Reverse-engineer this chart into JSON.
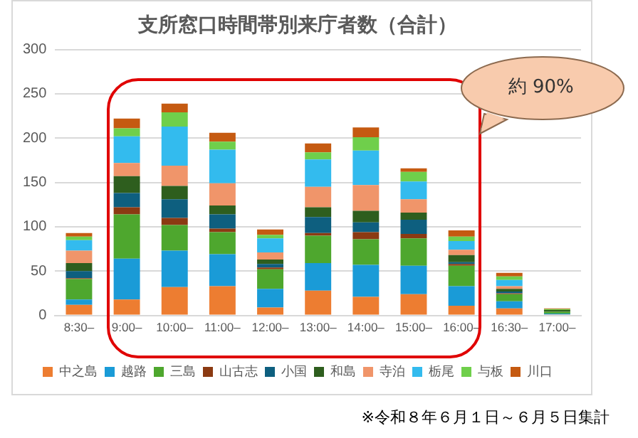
{
  "chart_data": {
    "type": "bar",
    "stacked": true,
    "title": "支所窓口時間帯別来庁者数（合計）",
    "categories": [
      "8:30–",
      "9:00–",
      "10:00–",
      "11:00–",
      "12:00–",
      "13:00–",
      "14:00–",
      "15:00–",
      "16:00–",
      "16:30–",
      "17:00–"
    ],
    "series": [
      {
        "name": "中之島",
        "color": "#ed7d31",
        "values": [
          12,
          18,
          32,
          33,
          9,
          28,
          21,
          24,
          11,
          8,
          1
        ]
      },
      {
        "name": "越路",
        "color": "#1a9bd7",
        "values": [
          6,
          46,
          41,
          36,
          21,
          31,
          36,
          32,
          22,
          8,
          1
        ]
      },
      {
        "name": "三島",
        "color": "#4ea72e",
        "values": [
          23,
          50,
          29,
          25,
          22,
          31,
          29,
          31,
          23,
          8,
          2
        ]
      },
      {
        "name": "山古志",
        "color": "#8b3a12",
        "values": [
          1,
          8,
          8,
          4,
          2,
          3,
          8,
          5,
          2,
          1,
          0
        ]
      },
      {
        "name": "小国",
        "color": "#0e5f7f",
        "values": [
          8,
          16,
          21,
          16,
          4,
          18,
          11,
          16,
          2,
          2,
          0
        ]
      },
      {
        "name": "和島",
        "color": "#2e5e1e",
        "values": [
          9,
          19,
          15,
          10,
          5,
          11,
          13,
          8,
          8,
          3,
          2
        ]
      },
      {
        "name": "寺泊",
        "color": "#f0956a",
        "values": [
          14,
          15,
          23,
          25,
          8,
          23,
          29,
          15,
          6,
          3,
          0
        ]
      },
      {
        "name": "栃尾",
        "color": "#33bbee",
        "values": [
          12,
          30,
          44,
          38,
          16,
          31,
          39,
          20,
          10,
          7,
          0
        ]
      },
      {
        "name": "与板",
        "color": "#6fcf4b",
        "values": [
          4,
          9,
          16,
          9,
          4,
          8,
          15,
          11,
          5,
          4,
          1
        ]
      },
      {
        "name": "川口",
        "color": "#c55a11",
        "values": [
          4,
          11,
          10,
          10,
          6,
          10,
          11,
          4,
          7,
          4,
          1
        ]
      }
    ],
    "ylim": [
      0,
      300
    ],
    "yticks": [
      0,
      50,
      100,
      150,
      200,
      250,
      300
    ],
    "grid": "y",
    "legend": "bottom",
    "annotations": [
      "約 90%",
      "※令和８年６月１日～６月５日集計"
    ]
  }
}
